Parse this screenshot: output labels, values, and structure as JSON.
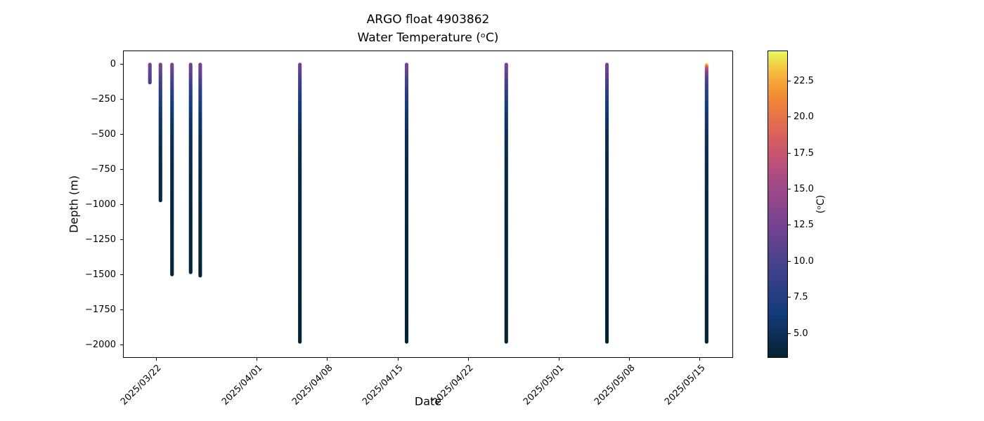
{
  "figure": {
    "title_line1": "ARGO float 4903862",
    "title_line2": "Water Temperature (ᵒC)",
    "xlabel": "Date",
    "ylabel": "Depth (m)",
    "colorbar_label": "(ᵒC)",
    "background": "#ffffff",
    "axis_color": "#000000"
  },
  "chart_data": {
    "type": "scatter",
    "title": "ARGO float 4903862",
    "subtitle": "Water Temperature (ᵒC)",
    "xlabel": "Date",
    "ylabel": "Depth (m)",
    "grid": false,
    "x_axis": {
      "epoch": "2025/03/22",
      "tick_labels": [
        "2025/03/22",
        "2025/04/01",
        "2025/04/08",
        "2025/04/15",
        "2025/04/22",
        "2025/05/01",
        "2025/05/08",
        "2025/05/15"
      ],
      "tick_day_offsets": [
        0,
        10,
        17,
        24,
        31,
        40,
        47,
        54
      ],
      "xlim_days": [
        -3.3,
        57.3
      ],
      "tick_rotation_deg": 45
    },
    "y_axis": {
      "tick_values": [
        0,
        -250,
        -500,
        -750,
        -1000,
        -1250,
        -1500,
        -1750,
        -2000
      ],
      "tick_labels": [
        "0",
        "−250",
        "−500",
        "−750",
        "−1000",
        "−1250",
        "−1500",
        "−1750",
        "−2000"
      ],
      "ylim": [
        -2095,
        95
      ]
    },
    "colorbar": {
      "label": "(ᵒC)",
      "vmin": 3.3,
      "vmax": 24.6,
      "tick_values": [
        5.0,
        7.5,
        10.0,
        12.5,
        15.0,
        17.5,
        20.0,
        22.5
      ],
      "colormap_name": "thermal",
      "colormap": [
        [
          0.0,
          "#042333"
        ],
        [
          0.15,
          "#143b7c"
        ],
        [
          0.3,
          "#45418d"
        ],
        [
          0.45,
          "#7c4391"
        ],
        [
          0.6,
          "#b04b83"
        ],
        [
          0.72,
          "#d95f5e"
        ],
        [
          0.85,
          "#f28933"
        ],
        [
          0.93,
          "#f7b93e"
        ],
        [
          1.0,
          "#e7fa5a"
        ]
      ]
    },
    "profiles": [
      {
        "date": "2025/03/21",
        "day_offset": -0.7,
        "max_depth_m": -130,
        "points": [
          [
            0,
            12.6
          ],
          [
            -40,
            12.0
          ],
          [
            -80,
            10.9
          ],
          [
            -130,
            9.9
          ]
        ]
      },
      {
        "date": "2025/03/22",
        "day_offset": 0.35,
        "max_depth_m": -970,
        "points": [
          [
            0,
            12.6
          ],
          [
            -40,
            12.0
          ],
          [
            -80,
            10.7
          ],
          [
            -120,
            9.7
          ],
          [
            -160,
            8.9
          ],
          [
            -200,
            8.1
          ],
          [
            -250,
            7.3
          ],
          [
            -300,
            6.6
          ],
          [
            -400,
            5.6
          ],
          [
            -500,
            5.0
          ],
          [
            -600,
            4.6
          ],
          [
            -800,
            4.1
          ],
          [
            -970,
            3.9
          ]
        ]
      },
      {
        "date": "2025/03/23",
        "day_offset": 1.5,
        "max_depth_m": -1500,
        "points": [
          [
            0,
            12.9
          ],
          [
            -40,
            12.2
          ],
          [
            -80,
            10.8
          ],
          [
            -120,
            9.8
          ],
          [
            -160,
            8.9
          ],
          [
            -200,
            8.1
          ],
          [
            -250,
            7.3
          ],
          [
            -300,
            6.6
          ],
          [
            -400,
            5.6
          ],
          [
            -500,
            5.0
          ],
          [
            -600,
            4.6
          ],
          [
            -800,
            4.1
          ],
          [
            -1000,
            3.9
          ],
          [
            -1200,
            3.7
          ],
          [
            -1500,
            3.6
          ]
        ]
      },
      {
        "date": "2025/03/25",
        "day_offset": 3.35,
        "max_depth_m": -1480,
        "points": [
          [
            0,
            12.4
          ],
          [
            -40,
            11.9
          ],
          [
            -80,
            10.7
          ],
          [
            -120,
            9.7
          ],
          [
            -160,
            8.8
          ],
          [
            -200,
            8.0
          ],
          [
            -250,
            7.2
          ],
          [
            -300,
            6.5
          ],
          [
            -400,
            5.6
          ],
          [
            -500,
            5.0
          ],
          [
            -600,
            4.6
          ],
          [
            -800,
            4.1
          ],
          [
            -1000,
            3.9
          ],
          [
            -1200,
            3.7
          ],
          [
            -1480,
            3.6
          ]
        ]
      },
      {
        "date": "2025/03/26",
        "day_offset": 4.3,
        "max_depth_m": -1510,
        "points": [
          [
            0,
            12.7
          ],
          [
            -40,
            12.0
          ],
          [
            -80,
            10.8
          ],
          [
            -120,
            9.8
          ],
          [
            -160,
            8.9
          ],
          [
            -200,
            8.1
          ],
          [
            -250,
            7.3
          ],
          [
            -300,
            6.6
          ],
          [
            -400,
            5.6
          ],
          [
            -500,
            5.0
          ],
          [
            -600,
            4.6
          ],
          [
            -800,
            4.1
          ],
          [
            -1000,
            3.9
          ],
          [
            -1200,
            3.7
          ],
          [
            -1510,
            3.6
          ]
        ]
      },
      {
        "date": "2025/04/05",
        "day_offset": 14.2,
        "max_depth_m": -1980,
        "points": [
          [
            0,
            12.3
          ],
          [
            -40,
            11.8
          ],
          [
            -80,
            10.6
          ],
          [
            -120,
            9.6
          ],
          [
            -160,
            8.8
          ],
          [
            -200,
            8.0
          ],
          [
            -250,
            7.2
          ],
          [
            -300,
            6.5
          ],
          [
            -400,
            5.6
          ],
          [
            -500,
            5.0
          ],
          [
            -600,
            4.6
          ],
          [
            -800,
            4.1
          ],
          [
            -1000,
            3.9
          ],
          [
            -1200,
            3.7
          ],
          [
            -1500,
            3.6
          ],
          [
            -1980,
            3.4
          ]
        ]
      },
      {
        "date": "2025/04/16",
        "day_offset": 24.8,
        "max_depth_m": -1980,
        "points": [
          [
            0,
            12.6
          ],
          [
            -40,
            12.0
          ],
          [
            -80,
            10.8
          ],
          [
            -120,
            9.8
          ],
          [
            -160,
            8.9
          ],
          [
            -200,
            8.1
          ],
          [
            -250,
            7.3
          ],
          [
            -300,
            6.6
          ],
          [
            -400,
            5.6
          ],
          [
            -500,
            5.0
          ],
          [
            -600,
            4.6
          ],
          [
            -800,
            4.1
          ],
          [
            -1000,
            3.9
          ],
          [
            -1200,
            3.7
          ],
          [
            -1500,
            3.6
          ],
          [
            -1980,
            3.4
          ]
        ]
      },
      {
        "date": "2025/04/26",
        "day_offset": 34.7,
        "max_depth_m": -1980,
        "points": [
          [
            0,
            12.9
          ],
          [
            -40,
            12.2
          ],
          [
            -80,
            10.9
          ],
          [
            -120,
            9.9
          ],
          [
            -160,
            9.0
          ],
          [
            -200,
            8.2
          ],
          [
            -250,
            7.4
          ],
          [
            -300,
            6.6
          ],
          [
            -400,
            5.6
          ],
          [
            -500,
            5.0
          ],
          [
            -600,
            4.6
          ],
          [
            -800,
            4.1
          ],
          [
            -1000,
            3.9
          ],
          [
            -1200,
            3.7
          ],
          [
            -1500,
            3.6
          ],
          [
            -1980,
            3.4
          ]
        ]
      },
      {
        "date": "2025/05/06",
        "day_offset": 44.7,
        "max_depth_m": -1980,
        "points": [
          [
            0,
            13.2
          ],
          [
            -40,
            12.4
          ],
          [
            -80,
            11.0
          ],
          [
            -120,
            9.9
          ],
          [
            -160,
            9.0
          ],
          [
            -200,
            8.2
          ],
          [
            -250,
            7.4
          ],
          [
            -300,
            6.6
          ],
          [
            -400,
            5.6
          ],
          [
            -500,
            5.0
          ],
          [
            -600,
            4.6
          ],
          [
            -800,
            4.1
          ],
          [
            -1000,
            3.9
          ],
          [
            -1200,
            3.7
          ],
          [
            -1500,
            3.6
          ],
          [
            -1980,
            3.4
          ]
        ]
      },
      {
        "date": "2025/05/16",
        "day_offset": 54.6,
        "max_depth_m": -1980,
        "points": [
          [
            0,
            24.3
          ],
          [
            -10,
            22.0
          ],
          [
            -20,
            19.0
          ],
          [
            -35,
            16.0
          ],
          [
            -60,
            13.0
          ],
          [
            -100,
            10.5
          ],
          [
            -150,
            8.8
          ],
          [
            -200,
            8.0
          ],
          [
            -300,
            6.5
          ],
          [
            -400,
            5.6
          ],
          [
            -500,
            5.0
          ],
          [
            -600,
            4.6
          ],
          [
            -800,
            4.1
          ],
          [
            -1000,
            3.9
          ],
          [
            -1200,
            3.7
          ],
          [
            -1500,
            3.6
          ],
          [
            -1980,
            3.4
          ]
        ]
      }
    ]
  }
}
